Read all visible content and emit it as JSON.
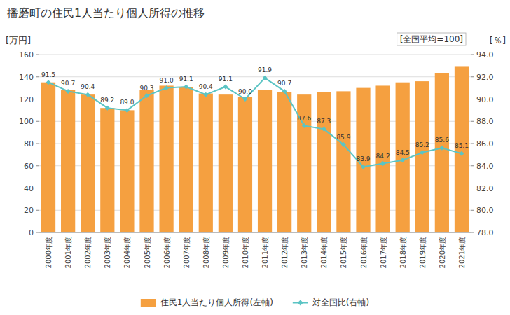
{
  "chart_data": {
    "type": "bar",
    "title": "播磨町の住民1人当たり個人所得の推移",
    "ylabel": "[万円]",
    "y2label": "[％]",
    "annotations": [
      "[全国平均=100]"
    ],
    "categories": [
      "2000年度",
      "2001年度",
      "2002年度",
      "2003年度",
      "2004年度",
      "2005年度",
      "2006年度",
      "2007年度",
      "2008年度",
      "2009年度",
      "2010年度",
      "2011年度",
      "2012年度",
      "2013年度",
      "2014年度",
      "2015年度",
      "2016年度",
      "2017年度",
      "2018年度",
      "2019年度",
      "2020年度",
      "2021年度"
    ],
    "series": [
      {
        "name": "住民1人当たり個人所得(左軸)",
        "type": "bar",
        "color": "#f5a040",
        "values": [
          135,
          128,
          124,
          112,
          110,
          128,
          132,
          131,
          125,
          124,
          122,
          128,
          126,
          124,
          126,
          127,
          130,
          132,
          135,
          136,
          143,
          149
        ]
      },
      {
        "name": "対全国比(右軸)",
        "type": "line",
        "color": "#5bc4c4",
        "marker": "diamond",
        "axis": "y2",
        "data_labels": true,
        "values": [
          91.5,
          90.7,
          90.4,
          89.2,
          89.0,
          90.3,
          91.0,
          91.1,
          90.4,
          91.1,
          90.0,
          91.9,
          90.7,
          87.6,
          87.3,
          85.9,
          83.9,
          84.2,
          84.5,
          85.2,
          85.6,
          85.1
        ],
        "value_labels": [
          "91.5",
          "90.7",
          "90.4",
          "89.2",
          "89.0",
          "90.3",
          "91.0",
          "91.1",
          "90.4",
          "91.1",
          "90.0",
          "91.9",
          "90.7",
          "87.6",
          "87.3",
          "85.9",
          "83.9",
          "84.2",
          "84.5",
          "85.2",
          "85.6",
          "85.1"
        ]
      }
    ],
    "ylim": [
      0,
      160
    ],
    "yticks": [
      0,
      20,
      40,
      60,
      80,
      100,
      120,
      140,
      160
    ],
    "y2lim": [
      78,
      94
    ],
    "y2ticks": [
      {
        "value": 78,
        "label": "78.0"
      },
      {
        "value": 80,
        "label": "80.0"
      },
      {
        "value": 82,
        "label": "82.0"
      },
      {
        "value": 84,
        "label": "84.0"
      },
      {
        "value": 86,
        "label": "86.0"
      },
      {
        "value": 88,
        "label": "88.0"
      },
      {
        "value": 90,
        "label": "90.0"
      },
      {
        "value": 92,
        "label": "92.0"
      },
      {
        "value": 94,
        "label": "94.0"
      }
    ],
    "grid": true,
    "legend": "bottom"
  }
}
